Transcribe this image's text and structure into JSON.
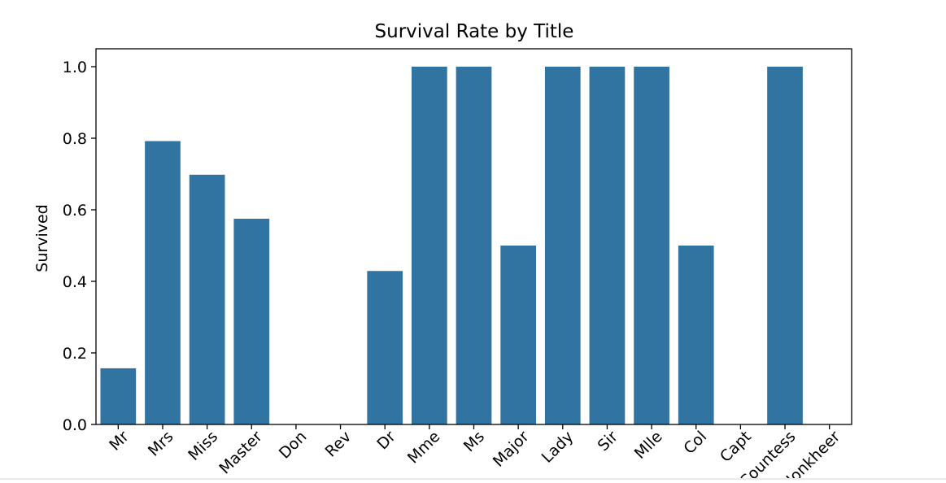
{
  "chart_data": {
    "type": "bar",
    "title": "Survival Rate by Title",
    "xlabel": "",
    "ylabel": "Survived",
    "categories": [
      "Mr",
      "Mrs",
      "Miss",
      "Master",
      "Don",
      "Rev",
      "Dr",
      "Mme",
      "Ms",
      "Major",
      "Lady",
      "Sir",
      "Mlle",
      "Col",
      "Capt",
      "Countess",
      "Jonkheer"
    ],
    "values": [
      0.157,
      0.792,
      0.698,
      0.575,
      0.0,
      0.0,
      0.429,
      1.0,
      1.0,
      0.5,
      1.0,
      1.0,
      1.0,
      0.5,
      0.0,
      1.0,
      0.0
    ],
    "ylim": [
      0,
      1.05
    ],
    "yticks": [
      0.0,
      0.2,
      0.4,
      0.6,
      0.8,
      1.0
    ],
    "ytick_labels": [
      "0.0",
      "0.2",
      "0.4",
      "0.6",
      "0.8",
      "1.0"
    ],
    "grid": false,
    "bar_color": "#3274a1"
  }
}
